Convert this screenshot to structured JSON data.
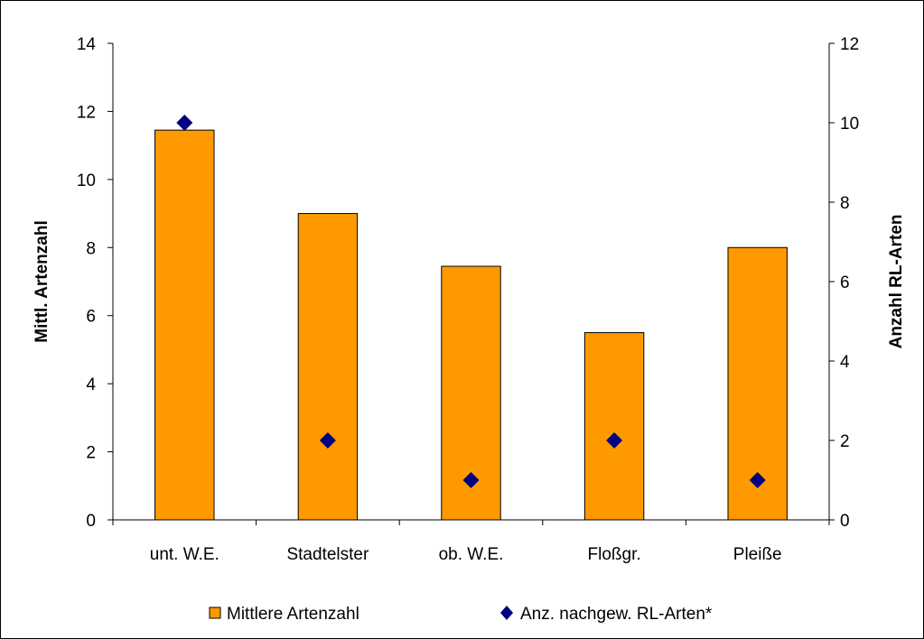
{
  "chart_data": {
    "type": "bar",
    "categories": [
      "unt. W.E.",
      "Stadtelster",
      "ob. W.E.",
      "Floßgr.",
      "Pleiße"
    ],
    "series": [
      {
        "name": "Mittlere Artenzahl",
        "type": "bar",
        "axis": "left",
        "color": "#FF9900",
        "values": [
          11.45,
          9.0,
          7.45,
          5.5,
          8.0
        ]
      },
      {
        "name": "Anz. nachgew. RL-Arten*",
        "type": "scatter",
        "marker": "diamond",
        "axis": "right",
        "color": "#000080",
        "values": [
          10,
          2,
          1,
          2,
          1
        ]
      }
    ],
    "ylabel": "Mittl. Artenzahl",
    "y2label": "Anzahl RL-Arten",
    "ylim": [
      0,
      14
    ],
    "y2lim": [
      0,
      12
    ],
    "yticks": [
      "0",
      "2",
      "4",
      "6",
      "8",
      "10",
      "12",
      "14"
    ],
    "y2ticks": [
      "0",
      "2",
      "4",
      "6",
      "8",
      "10",
      "12"
    ],
    "grid": false,
    "legend_position": "bottom"
  }
}
